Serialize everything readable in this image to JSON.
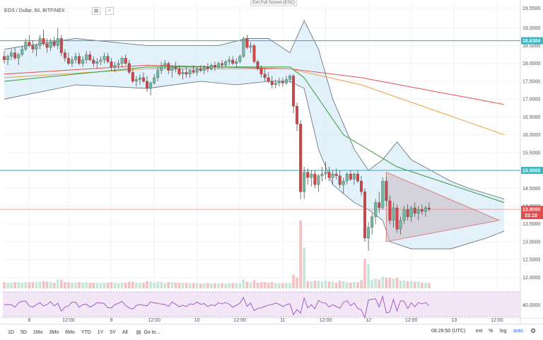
{
  "header": {
    "symbol_title": "EOS / Dollar, 60, BITFINEX",
    "exit_fullscreen": "Exit Full Screen (ESC)"
  },
  "bottom_bar": {
    "ranges": [
      "1D",
      "5D",
      "1Mo",
      "3Mo",
      "6Mo",
      "YTD",
      "1Y",
      "5Y",
      "All"
    ],
    "goto": "Go to...",
    "time": "08:26:50 (UTC)",
    "ext": "ext",
    "percent": "%",
    "log": "log",
    "auto": "auto"
  },
  "colors": {
    "up": "#6fb8a0",
    "down": "#d04545",
    "hline": "#3fb3c0",
    "band_fill": "#d8ecf8",
    "ma_red": "#e05050",
    "ma_orange": "#f0a040",
    "ma_green": "#3a9a3a",
    "triangle_fill": "#c9b8c0",
    "triangle_stroke": "#d88080",
    "price_tag": "#e44d4d",
    "rsi_band": "#efe0f5"
  },
  "chart_data": {
    "type": "candlestick",
    "title": "EOS / Dollar, 60, BITFINEX",
    "y_axis_ticks": [
      "19.5500",
      "19.0000",
      "18.5000",
      "18.0000",
      "17.5000",
      "17.0000",
      "16.5000",
      "16.0000",
      "15.5000",
      "15.0000",
      "14.5000",
      "14.0000",
      "13.5000",
      "13.0000",
      "12.5000",
      "12.0000"
    ],
    "ylim": [
      11.75,
      19.7
    ],
    "x_axis_ticks": [
      "8",
      "12:00",
      "9",
      "12:00",
      "10",
      "12:00",
      "11",
      "12:00",
      "12",
      "12:00",
      "13",
      "12:00"
    ],
    "horizontal_levels": [
      {
        "label": "18.6384",
        "value": 18.6384
      },
      {
        "label": "15.0000",
        "value": 15.0
      }
    ],
    "current_price": {
      "label": "13.9090",
      "value": 13.909,
      "countdown": "33:10"
    },
    "rsi_level_label": "40.0000",
    "candles_ohlc": [
      [
        18.2,
        18.35,
        18.0,
        18.1
      ],
      [
        18.1,
        18.25,
        17.95,
        18.2
      ],
      [
        18.2,
        18.4,
        18.1,
        18.3
      ],
      [
        18.3,
        18.45,
        18.1,
        18.15
      ],
      [
        18.15,
        18.3,
        17.95,
        18.25
      ],
      [
        18.25,
        18.5,
        18.2,
        18.4
      ],
      [
        18.4,
        18.7,
        18.35,
        18.6
      ],
      [
        18.6,
        18.8,
        18.45,
        18.5
      ],
      [
        18.5,
        18.65,
        18.3,
        18.4
      ],
      [
        18.4,
        18.55,
        18.2,
        18.5
      ],
      [
        18.5,
        18.8,
        18.4,
        18.7
      ],
      [
        18.7,
        18.95,
        18.5,
        18.55
      ],
      [
        18.55,
        18.7,
        18.3,
        18.45
      ],
      [
        18.45,
        18.7,
        18.35,
        18.6
      ],
      [
        18.6,
        18.75,
        18.45,
        18.5
      ],
      [
        18.5,
        19.0,
        18.4,
        18.7
      ],
      [
        18.7,
        18.8,
        18.2,
        18.3
      ],
      [
        18.3,
        18.4,
        18.05,
        18.15
      ],
      [
        18.15,
        18.3,
        17.95,
        18.0
      ],
      [
        18.0,
        18.2,
        17.9,
        18.1
      ],
      [
        18.1,
        18.3,
        18.0,
        18.2
      ],
      [
        18.2,
        18.3,
        17.95,
        18.0
      ],
      [
        18.0,
        18.2,
        17.9,
        18.1
      ],
      [
        18.1,
        18.35,
        18.0,
        18.25
      ],
      [
        18.25,
        18.35,
        18.05,
        18.1
      ],
      [
        18.1,
        18.2,
        17.9,
        18.0
      ],
      [
        18.0,
        18.15,
        17.85,
        18.05
      ],
      [
        18.05,
        18.2,
        17.95,
        18.1
      ],
      [
        18.1,
        18.3,
        18.0,
        18.2
      ],
      [
        18.2,
        18.3,
        18.0,
        18.05
      ],
      [
        18.05,
        18.15,
        17.8,
        17.9
      ],
      [
        17.9,
        18.05,
        17.75,
        17.95
      ],
      [
        17.95,
        18.1,
        17.85,
        18.0
      ],
      [
        18.0,
        18.2,
        17.9,
        18.15
      ],
      [
        18.15,
        18.25,
        17.95,
        18.0
      ],
      [
        18.0,
        18.1,
        17.7,
        17.75
      ],
      [
        17.75,
        17.85,
        17.45,
        17.5
      ],
      [
        17.5,
        17.65,
        17.35,
        17.55
      ],
      [
        17.55,
        17.7,
        17.4,
        17.6
      ],
      [
        17.6,
        17.75,
        17.45,
        17.5
      ],
      [
        17.5,
        17.65,
        17.2,
        17.3
      ],
      [
        17.3,
        17.5,
        17.1,
        17.45
      ],
      [
        17.45,
        17.7,
        17.4,
        17.6
      ],
      [
        17.6,
        17.9,
        17.5,
        17.8
      ],
      [
        17.8,
        18.05,
        17.7,
        17.95
      ],
      [
        17.95,
        18.1,
        17.85,
        18.0
      ],
      [
        18.0,
        18.05,
        17.7,
        17.8
      ],
      [
        17.8,
        17.95,
        17.6,
        17.9
      ],
      [
        17.9,
        18.05,
        17.75,
        17.85
      ],
      [
        17.85,
        17.95,
        17.65,
        17.7
      ],
      [
        17.7,
        17.85,
        17.55,
        17.75
      ],
      [
        17.75,
        17.9,
        17.6,
        17.7
      ],
      [
        17.7,
        17.85,
        17.6,
        17.8
      ],
      [
        17.8,
        17.95,
        17.7,
        17.75
      ],
      [
        17.75,
        17.9,
        17.65,
        17.85
      ],
      [
        17.85,
        17.95,
        17.75,
        17.8
      ],
      [
        17.8,
        17.95,
        17.7,
        17.9
      ],
      [
        17.9,
        18.0,
        17.75,
        17.85
      ],
      [
        17.85,
        18.0,
        17.8,
        17.95
      ],
      [
        17.95,
        18.05,
        17.8,
        17.9
      ],
      [
        17.9,
        18.05,
        17.85,
        18.0
      ],
      [
        18.0,
        18.1,
        17.85,
        17.95
      ],
      [
        17.95,
        18.1,
        17.9,
        18.05
      ],
      [
        18.05,
        18.2,
        17.95,
        18.1
      ],
      [
        18.1,
        18.2,
        17.95,
        18.0
      ],
      [
        18.0,
        18.15,
        17.9,
        18.05
      ],
      [
        18.05,
        18.25,
        18.0,
        18.2
      ],
      [
        18.2,
        18.75,
        18.15,
        18.7
      ],
      [
        18.7,
        18.8,
        18.4,
        18.45
      ],
      [
        18.45,
        18.6,
        18.3,
        18.5
      ],
      [
        18.5,
        18.55,
        18.0,
        18.05
      ],
      [
        18.05,
        18.1,
        17.8,
        17.85
      ],
      [
        17.85,
        17.95,
        17.6,
        17.7
      ],
      [
        17.7,
        17.85,
        17.5,
        17.6
      ],
      [
        17.6,
        17.75,
        17.45,
        17.5
      ],
      [
        17.5,
        17.65,
        17.3,
        17.4
      ],
      [
        17.4,
        17.55,
        17.3,
        17.45
      ],
      [
        17.45,
        17.6,
        17.35,
        17.5
      ],
      [
        17.5,
        17.6,
        17.35,
        17.45
      ],
      [
        17.45,
        17.65,
        17.4,
        17.55
      ],
      [
        17.55,
        17.7,
        17.45,
        17.65
      ],
      [
        17.65,
        17.7,
        16.6,
        16.8
      ],
      [
        16.8,
        16.9,
        16.1,
        16.3
      ],
      [
        16.3,
        16.4,
        14.2,
        14.4
      ],
      [
        14.4,
        15.1,
        14.2,
        14.95
      ],
      [
        14.95,
        15.05,
        14.6,
        14.8
      ],
      [
        14.8,
        15.0,
        14.55,
        14.9
      ],
      [
        14.9,
        15.0,
        14.5,
        14.6
      ],
      [
        14.6,
        14.9,
        14.4,
        14.85
      ],
      [
        14.85,
        15.1,
        14.7,
        14.9
      ],
      [
        14.9,
        15.25,
        14.75,
        14.95
      ],
      [
        14.95,
        15.1,
        14.7,
        14.8
      ],
      [
        14.8,
        15.0,
        14.6,
        14.9
      ],
      [
        14.9,
        15.05,
        14.75,
        14.85
      ],
      [
        14.85,
        15.0,
        14.5,
        14.6
      ],
      [
        14.6,
        14.8,
        14.35,
        14.7
      ],
      [
        14.7,
        14.95,
        14.6,
        14.9
      ],
      [
        14.9,
        15.0,
        14.7,
        14.75
      ],
      [
        14.75,
        14.95,
        14.6,
        14.9
      ],
      [
        14.9,
        15.0,
        14.65,
        14.7
      ],
      [
        14.7,
        14.85,
        14.3,
        14.4
      ],
      [
        14.4,
        14.5,
        13.0,
        13.1
      ],
      [
        13.1,
        13.55,
        12.75,
        13.4
      ],
      [
        13.4,
        13.8,
        13.2,
        13.7
      ],
      [
        13.7,
        14.2,
        13.5,
        14.1
      ],
      [
        14.1,
        14.4,
        13.8,
        13.95
      ],
      [
        13.95,
        14.8,
        13.9,
        14.7
      ],
      [
        14.7,
        14.8,
        14.0,
        14.15
      ],
      [
        14.15,
        14.3,
        13.5,
        13.6
      ],
      [
        13.6,
        14.1,
        13.4,
        13.95
      ],
      [
        13.95,
        14.05,
        13.25,
        13.35
      ],
      [
        13.35,
        13.7,
        13.2,
        13.6
      ],
      [
        13.6,
        14.0,
        13.5,
        13.9
      ],
      [
        13.9,
        14.05,
        13.6,
        13.7
      ],
      [
        13.7,
        14.0,
        13.55,
        13.95
      ],
      [
        13.95,
        14.1,
        13.7,
        13.8
      ],
      [
        13.8,
        14.0,
        13.6,
        13.9
      ],
      [
        13.9,
        14.05,
        13.75,
        13.85
      ],
      [
        13.85,
        14.0,
        13.7,
        13.95
      ],
      [
        13.95,
        14.1,
        13.85,
        13.91
      ]
    ],
    "moving_averages": [
      {
        "color": "red",
        "points": [
          [
            0,
            17.7
          ],
          [
            40,
            17.95
          ],
          [
            80,
            17.85
          ],
          [
            100,
            17.6
          ],
          [
            140,
            16.85
          ]
        ]
      },
      {
        "color": "orange",
        "points": [
          [
            0,
            17.6
          ],
          [
            40,
            17.85
          ],
          [
            80,
            17.85
          ],
          [
            100,
            17.4
          ],
          [
            140,
            16.0
          ]
        ]
      },
      {
        "color": "green",
        "points": [
          [
            0,
            17.5
          ],
          [
            40,
            17.9
          ],
          [
            80,
            17.9
          ],
          [
            84,
            17.6
          ],
          [
            95,
            16.0
          ],
          [
            110,
            15.1
          ],
          [
            140,
            14.1
          ]
        ]
      }
    ],
    "bollinger_bands": {
      "upper": [
        [
          0,
          18.4
        ],
        [
          20,
          18.7
        ],
        [
          40,
          18.5
        ],
        [
          60,
          18.5
        ],
        [
          68,
          18.7
        ],
        [
          74,
          18.7
        ],
        [
          80,
          18.3
        ],
        [
          84,
          19.2
        ],
        [
          88,
          18.4
        ],
        [
          92,
          17.0
        ],
        [
          98,
          15.6
        ],
        [
          102,
          15.0
        ],
        [
          106,
          15.3
        ],
        [
          110,
          15.8
        ],
        [
          114,
          15.3
        ],
        [
          125,
          14.7
        ],
        [
          130,
          14.5
        ],
        [
          140,
          14.2
        ]
      ],
      "lower": [
        [
          0,
          17.0
        ],
        [
          20,
          17.4
        ],
        [
          40,
          17.3
        ],
        [
          55,
          17.5
        ],
        [
          65,
          17.4
        ],
        [
          74,
          17.5
        ],
        [
          80,
          17.5
        ],
        [
          84,
          17.3
        ],
        [
          88,
          15.6
        ],
        [
          92,
          14.6
        ],
        [
          98,
          14.1
        ],
        [
          102,
          13.9
        ],
        [
          106,
          13.6
        ],
        [
          108,
          13.0
        ],
        [
          114,
          12.8
        ],
        [
          125,
          12.8
        ],
        [
          135,
          13.1
        ],
        [
          140,
          13.3
        ]
      ]
    },
    "triangle": {
      "points": [
        [
          107,
          14.95
        ],
        [
          140,
          13.65
        ],
        [
          107,
          13.0
        ]
      ]
    }
  }
}
